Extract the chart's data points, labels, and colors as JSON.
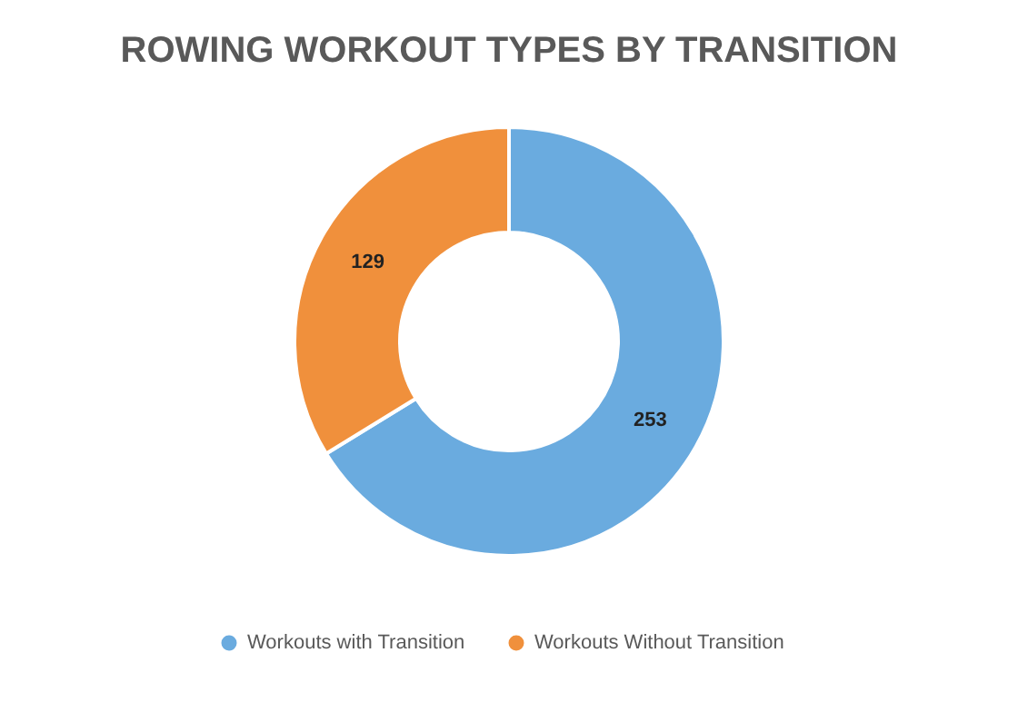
{
  "chart_data": {
    "type": "donut",
    "title": "ROWING WORKOUT TYPES BY TRANSITION",
    "categories": [
      "Workouts with Transition",
      "Workouts Without Transition"
    ],
    "values": [
      253,
      129
    ],
    "colors": [
      "#6aabdf",
      "#f0903c"
    ],
    "data_labels": true,
    "legend": "bottom"
  }
}
